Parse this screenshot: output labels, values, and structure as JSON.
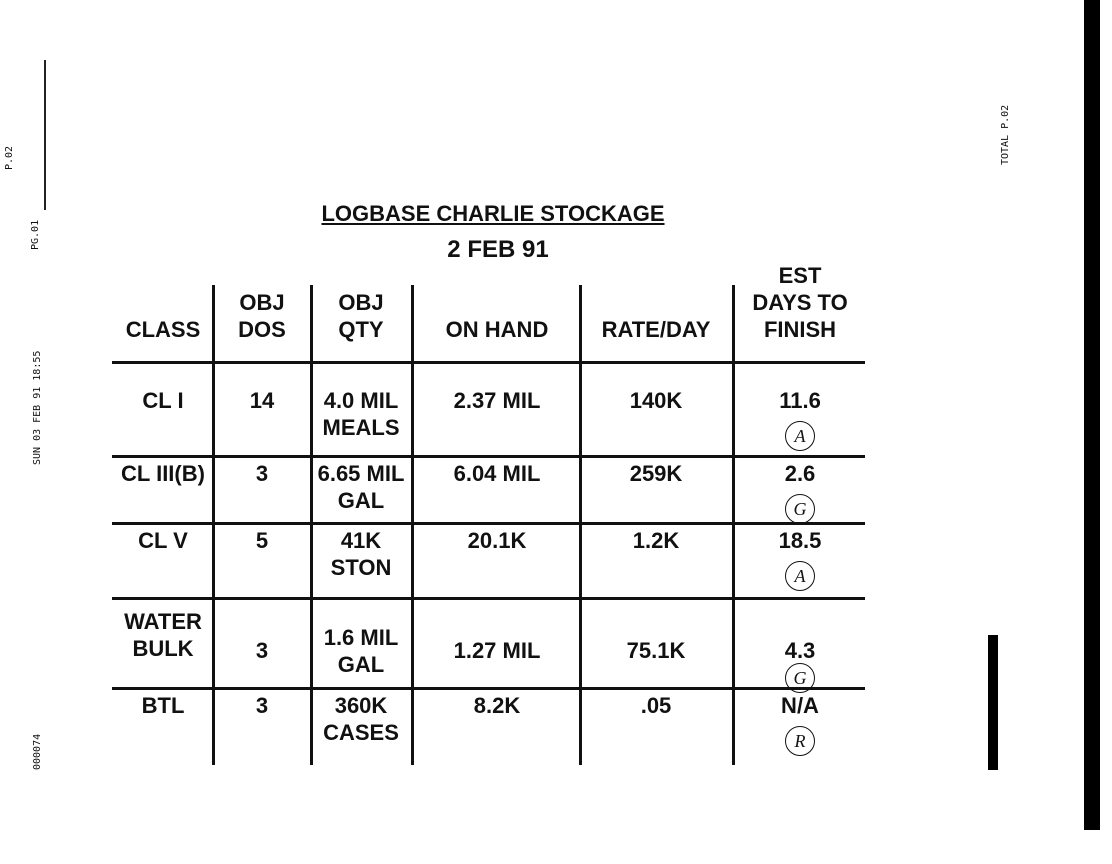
{
  "margin": {
    "left_top": "P.02",
    "left_page": "PG.01",
    "left_stamp": "SUN 03 FEB 91 18:55",
    "left_bottom": "000074",
    "right_total": "TOTAL P.02"
  },
  "header": {
    "title": "LOGBASE CHARLIE STOCKAGE",
    "date": "2 FEB 91"
  },
  "table": {
    "columns": [
      [
        "CLASS"
      ],
      [
        "OBJ",
        "DOS"
      ],
      [
        "OBJ",
        "QTY"
      ],
      [
        "ON HAND"
      ],
      [
        "RATE/DAY"
      ],
      [
        "EST",
        "DAYS TO",
        "FINISH"
      ]
    ],
    "rows": [
      [
        [
          "CL I"
        ],
        [
          "14"
        ],
        [
          "4.0 MIL",
          "MEALS"
        ],
        [
          "2.37 MIL"
        ],
        [
          "140K"
        ],
        [
          "11.6"
        ]
      ],
      [
        [
          "CL III(B)"
        ],
        [
          "3"
        ],
        [
          "6.65 MIL",
          "GAL"
        ],
        [
          "6.04 MIL"
        ],
        [
          "259K"
        ],
        [
          "2.6"
        ]
      ],
      [
        [
          "CL V"
        ],
        [
          "5"
        ],
        [
          "41K",
          "STON"
        ],
        [
          "20.1K"
        ],
        [
          "1.2K"
        ],
        [
          "18.5"
        ]
      ],
      [
        [
          "WATER",
          "BULK"
        ],
        [
          "3"
        ],
        [
          "1.6 MIL",
          "GAL"
        ],
        [
          "1.27 MIL"
        ],
        [
          "75.1K"
        ],
        [
          "4.3"
        ]
      ],
      [
        [
          "BTL"
        ],
        [
          "3"
        ],
        [
          "360K",
          "CASES"
        ],
        [
          "8.2K"
        ],
        [
          ".05"
        ],
        [
          "N/A"
        ]
      ]
    ],
    "ratings": [
      "A",
      "G",
      "A",
      "G",
      "R"
    ]
  }
}
